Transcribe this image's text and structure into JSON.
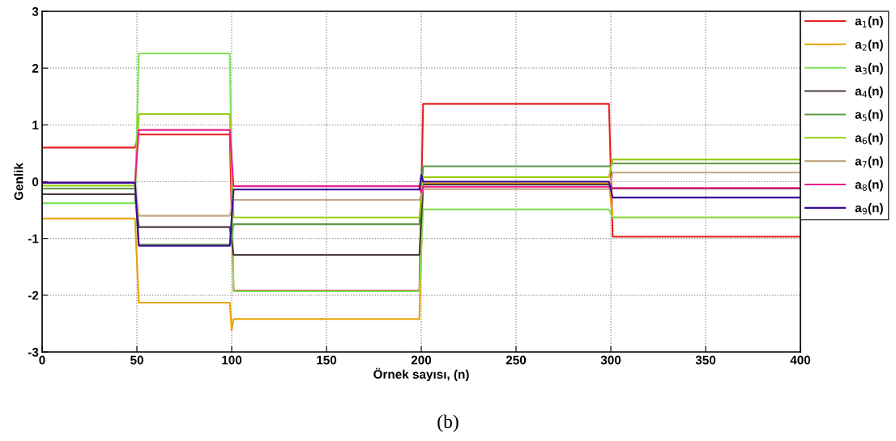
{
  "chart_data": {
    "type": "line",
    "xlabel": "Örnek sayısı, (n)",
    "ylabel": "Genlik",
    "annotations": [
      "(b)"
    ],
    "xlim": [
      0,
      400
    ],
    "ylim": [
      -3,
      3
    ],
    "xticks": [
      0,
      50,
      100,
      150,
      200,
      250,
      300,
      350,
      400
    ],
    "yticks": [
      -3,
      -2,
      -1,
      0,
      1,
      2,
      3
    ],
    "grid": true,
    "legend": "right",
    "line_style": "solid",
    "marker": "none",
    "series": [
      {
        "name": "a$_{1}$(n)",
        "color": "#e8201f",
        "x": [
          0,
          49,
          51,
          99,
          101,
          199,
          201,
          299,
          301,
          400
        ],
        "values": [
          0.6,
          0.6,
          0.83,
          0.83,
          -1.92,
          -1.92,
          1.37,
          1.37,
          -0.97,
          -0.97
        ]
      },
      {
        "name": "a$_{2}$(n)",
        "color": "#e8a400",
        "x": [
          0,
          49,
          51,
          99,
          100,
          101,
          199,
          201,
          299,
          301,
          400
        ],
        "values": [
          -0.65,
          -0.65,
          -2.13,
          -2.13,
          -2.62,
          -2.42,
          -2.42,
          -0.03,
          -0.03,
          -0.63,
          -0.63
        ]
      },
      {
        "name": "a$_{3}$(n)",
        "color": "#7ee35a",
        "x": [
          0,
          49,
          51,
          99,
          101,
          199,
          201,
          299,
          301,
          400
        ],
        "values": [
          -0.38,
          -0.38,
          2.26,
          2.26,
          -1.93,
          -1.93,
          -0.49,
          -0.49,
          -0.63,
          -0.63
        ]
      },
      {
        "name": "a$_{4}$(n)",
        "color": "#4a3c37",
        "x": [
          0,
          49,
          51,
          99,
          101,
          199,
          201,
          299,
          301,
          400
        ],
        "values": [
          -0.22,
          -0.22,
          -0.8,
          -0.8,
          -1.29,
          -1.29,
          -0.05,
          -0.05,
          -0.12,
          -0.12
        ]
      },
      {
        "name": "a$_{5}$(n)",
        "color": "#5f9a4a",
        "x": [
          0,
          49,
          51,
          99,
          101,
          199,
          201,
          299,
          301,
          400
        ],
        "values": [
          -0.12,
          -0.12,
          -1.11,
          -1.11,
          -0.75,
          -0.75,
          0.27,
          0.27,
          0.32,
          0.32
        ]
      },
      {
        "name": "a$_{6}$(n)",
        "color": "#99cc11",
        "x": [
          0,
          49,
          51,
          99,
          101,
          199,
          201,
          299,
          301,
          400
        ],
        "values": [
          -0.07,
          -0.07,
          1.19,
          1.19,
          -0.63,
          -0.63,
          0.08,
          0.08,
          0.39,
          0.39
        ]
      },
      {
        "name": "a$_{7}$(n)",
        "color": "#c2a882",
        "x": [
          0,
          49,
          51,
          99,
          101,
          199,
          201,
          299,
          301,
          400
        ],
        "values": [
          -0.02,
          -0.02,
          -0.6,
          -0.6,
          -0.32,
          -0.32,
          -0.13,
          -0.13,
          0.16,
          0.16
        ]
      },
      {
        "name": "a$_{8}$(n)",
        "color": "#ef1c8c",
        "x": [
          0,
          49,
          51,
          99,
          101,
          199,
          200,
          201,
          299,
          301,
          400
        ],
        "values": [
          -0.02,
          -0.02,
          0.91,
          0.91,
          -0.08,
          -0.08,
          -0.2,
          -0.09,
          -0.09,
          -0.11,
          -0.11
        ]
      },
      {
        "name": "a$_{9}$(n)",
        "color": "#3a0a99",
        "x": [
          0,
          49,
          51,
          99,
          101,
          199,
          200,
          201,
          299,
          301,
          400
        ],
        "values": [
          -0.02,
          -0.02,
          -1.13,
          -1.13,
          -0.14,
          -0.14,
          0.12,
          0.0,
          0.0,
          -0.28,
          -0.28
        ]
      }
    ]
  }
}
